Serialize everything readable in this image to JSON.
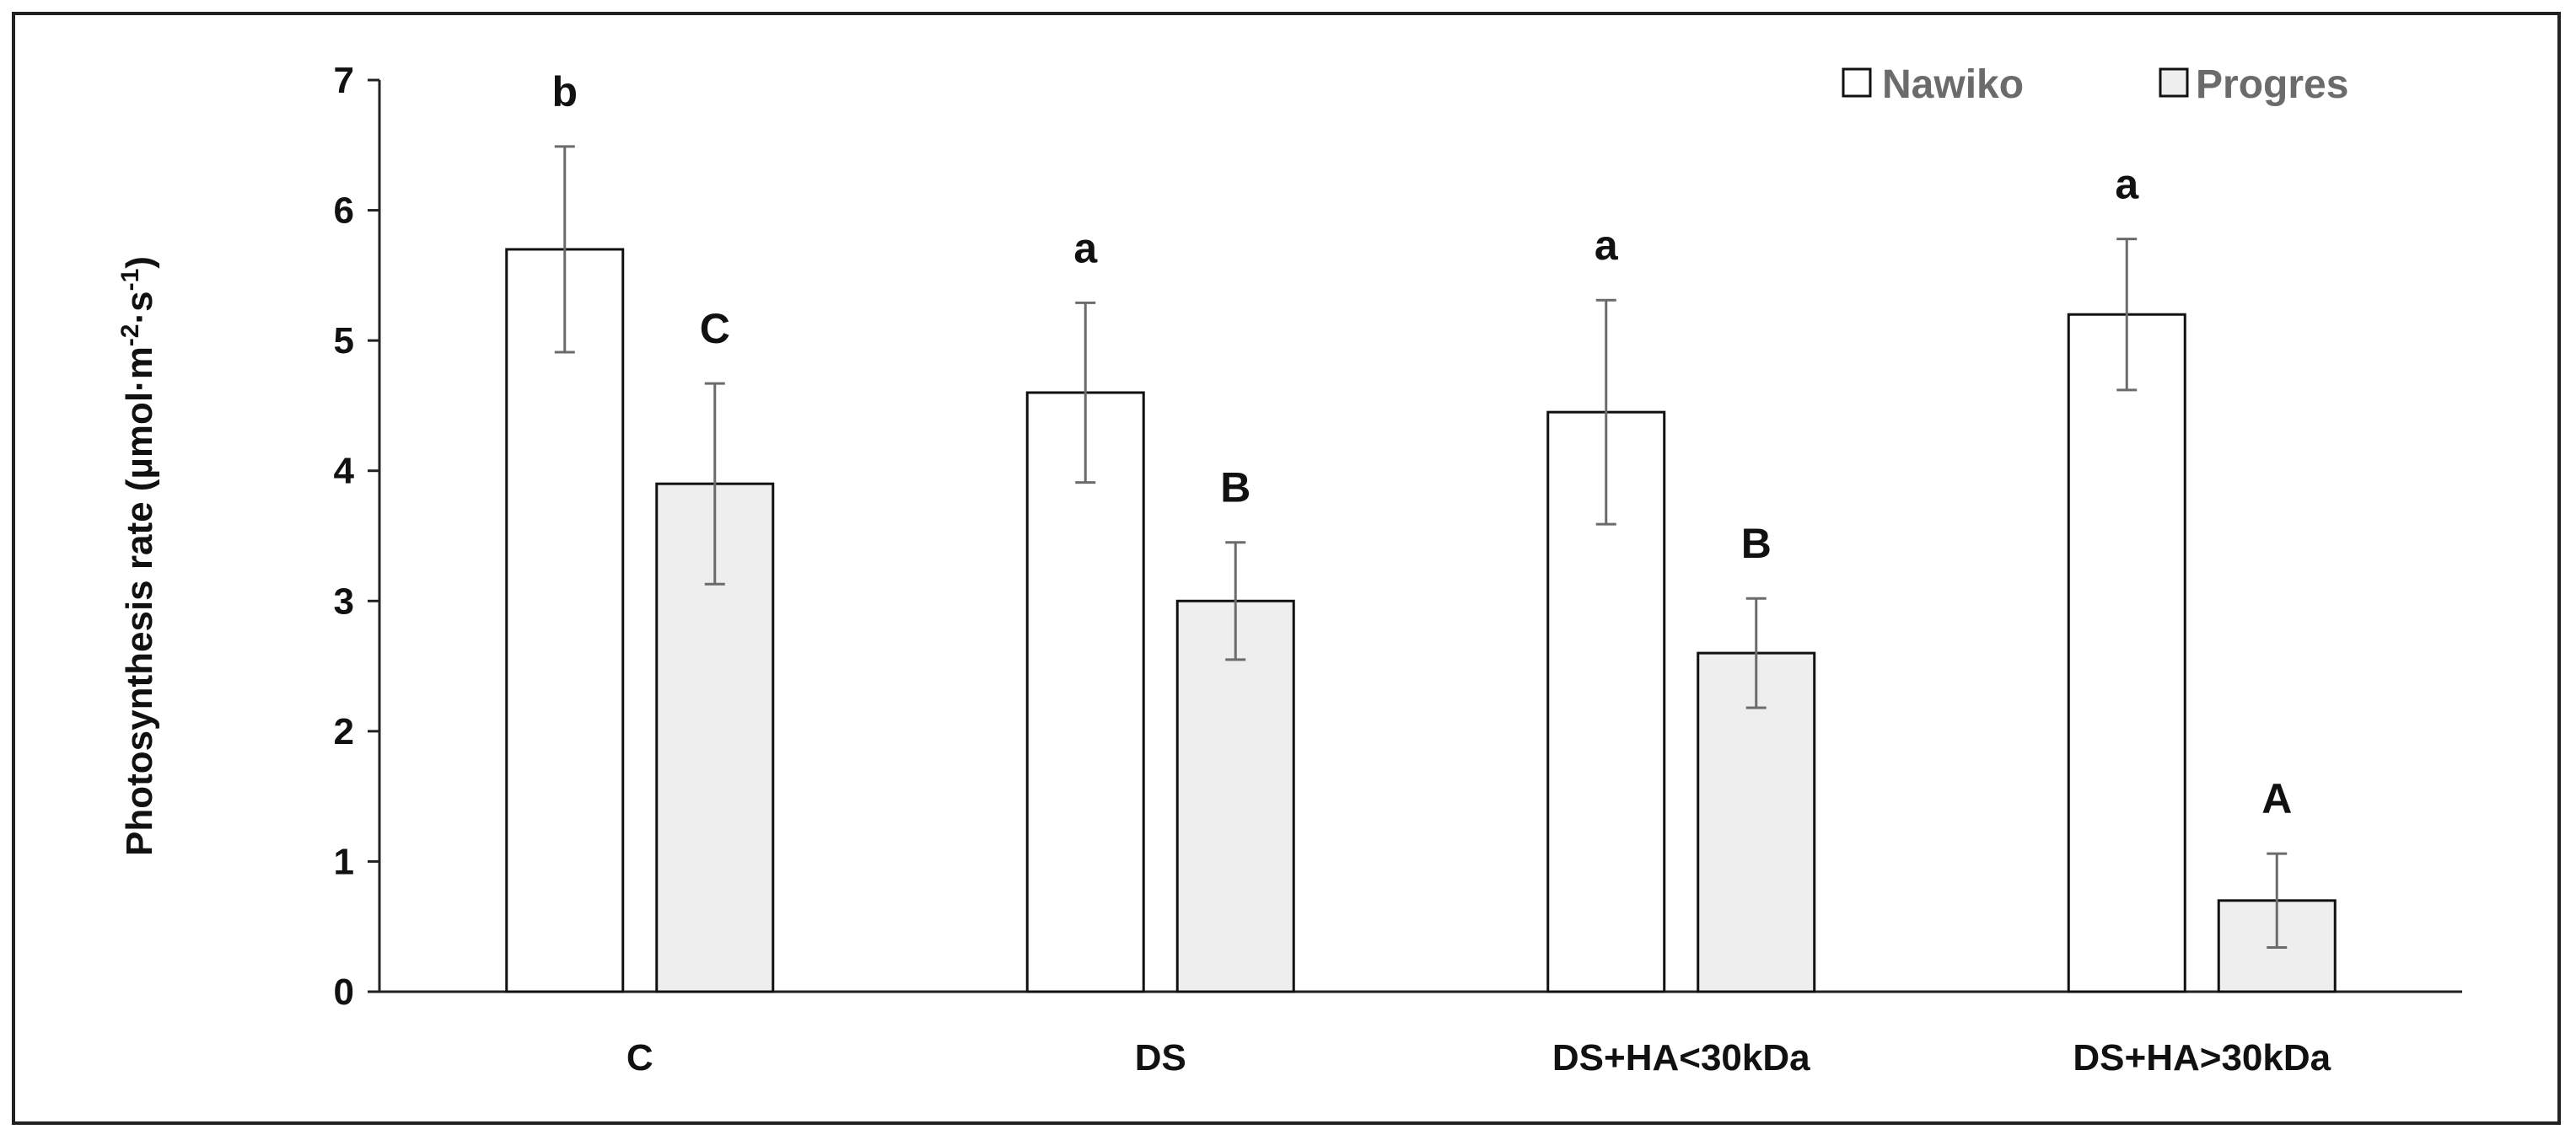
{
  "chart_data": {
    "type": "bar",
    "title": "",
    "xlabel": "",
    "ylabel": "Photosynthesis rate (µmol·m",
    "ylabel_sup1": "-2",
    "ylabel_mid": "·s",
    "ylabel_sup2": "-1",
    "ylabel_end": ")",
    "ylim": [
      0,
      7
    ],
    "yticks": [
      0,
      1,
      2,
      3,
      4,
      5,
      6,
      7
    ],
    "categories": [
      "C",
      "DS",
      "DS+HA<30kDa",
      "DS+HA>30kDa"
    ],
    "legend_position": "top-right",
    "grid": false,
    "series": [
      {
        "name": "Nawiko",
        "color": "#ffffff",
        "values": [
          5.7,
          4.6,
          4.45,
          5.2
        ],
        "errors": [
          0.79,
          0.69,
          0.86,
          0.58
        ],
        "significance": [
          "b",
          "a",
          "a",
          "a"
        ]
      },
      {
        "name": "Progres",
        "color": "#eeeeee",
        "values": [
          3.9,
          3.0,
          2.6,
          0.7
        ],
        "errors": [
          0.77,
          0.45,
          0.42,
          0.36
        ],
        "significance": [
          "C",
          "B",
          "B",
          "A"
        ]
      }
    ]
  },
  "colors": {
    "bar_stroke": "#111111",
    "error_bar": "#6b6b6b",
    "axis": "#222222",
    "legend_text": "#6b6b6b"
  }
}
